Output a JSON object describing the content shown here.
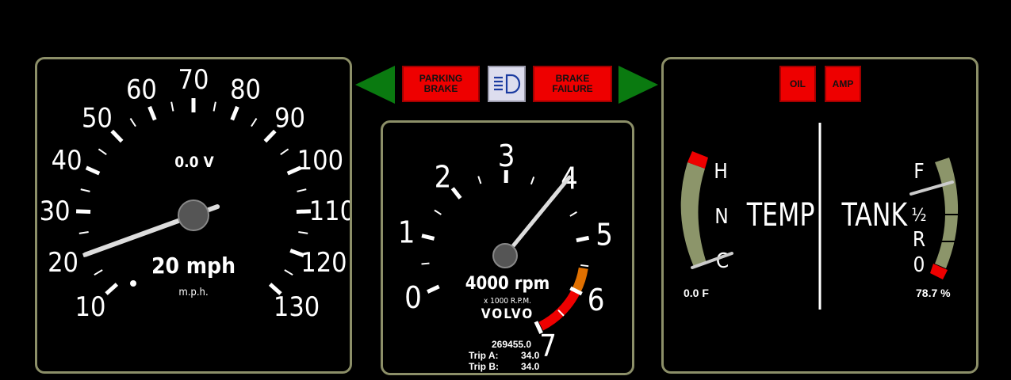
{
  "speedometer": {
    "voltage_readout": "0.0 V",
    "speed_readout": "20 mph",
    "unit_label": "m.p.h.",
    "speed_value": 20,
    "scale": [
      "10",
      "20",
      "30",
      "40",
      "50",
      "60",
      "70",
      "80",
      "90",
      "100",
      "110",
      "120",
      "130"
    ]
  },
  "tachometer": {
    "rpm_readout": "4000 rpm",
    "unit_label": "x 1000 R.P.M.",
    "brand": "VOLVO",
    "rpm_value": 4,
    "scale": [
      "0",
      "1",
      "2",
      "3",
      "4",
      "5",
      "6",
      "7"
    ],
    "odometer": "269455.0",
    "trip_a_label": "Trip A:",
    "trip_a_value": "34.0",
    "trip_b_label": "Trip B:",
    "trip_b_value": "34.0"
  },
  "warnings": {
    "parking_brake": "PARKING BRAKE",
    "brake_failure": "BRAKE FAILURE",
    "oil": "OIL",
    "amp": "AMP",
    "headlight_icon": "high-beam-icon",
    "turn_signal_color": "#0a7a10",
    "warning_color": "#ee0000"
  },
  "temperature": {
    "label": "TEMP",
    "high": "H",
    "normal": "N",
    "cold": "C",
    "readout": "0.0 F"
  },
  "fuel": {
    "label": "TANK",
    "full": "F",
    "half": "½",
    "reserve": "R",
    "empty": "0",
    "readout": "78.7 %",
    "level_percent": 78.7
  }
}
